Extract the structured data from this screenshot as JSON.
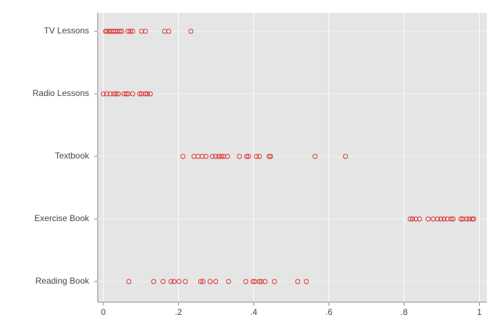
{
  "chart_data": {
    "type": "strip",
    "categories": [
      "TV Lessons",
      "Radio Lessons",
      "Textbook",
      "Exercise Book",
      "Reading Book"
    ],
    "values": [
      [
        0.006,
        0.009,
        0.015,
        0.021,
        0.027,
        0.032,
        0.038,
        0.044,
        0.049,
        0.066,
        0.072,
        0.078,
        0.102,
        0.112,
        0.163,
        0.174,
        0.233
      ],
      [
        0,
        0.009,
        0.019,
        0.028,
        0.034,
        0.04,
        0.055,
        0.061,
        0.066,
        0.078,
        0.097,
        0.102,
        0.112,
        0.117,
        0.125
      ],
      [
        0.212,
        0.241,
        0.252,
        0.263,
        0.273,
        0.29,
        0.299,
        0.307,
        0.314,
        0.32,
        0.33,
        0.362,
        0.381,
        0.386,
        0.407,
        0.415,
        0.441,
        0.445,
        0.563,
        0.644
      ],
      [
        0.816,
        0.822,
        0.831,
        0.841,
        0.864,
        0.877,
        0.889,
        0.898,
        0.906,
        0.915,
        0.925,
        0.93,
        0.951,
        0.956,
        0.966,
        0.973,
        0.981,
        0.985
      ],
      [
        0.068,
        0.134,
        0.159,
        0.18,
        0.188,
        0.201,
        0.218,
        0.259,
        0.265,
        0.284,
        0.299,
        0.333,
        0.379,
        0.398,
        0.403,
        0.415,
        0.42,
        0.43,
        0.455,
        0.517,
        0.54
      ]
    ],
    "color": "#d9312c",
    "xlim": [
      -0.015,
      1.02
    ],
    "xticks": [
      0,
      {
        "value": 0.2,
        "label": ".2"
      },
      {
        "value": 0.4,
        "label": ".4"
      },
      {
        "value": 0.6,
        "label": ".6"
      },
      {
        "value": 0.8,
        "label": ".8"
      },
      1
    ],
    "grid": true
  }
}
